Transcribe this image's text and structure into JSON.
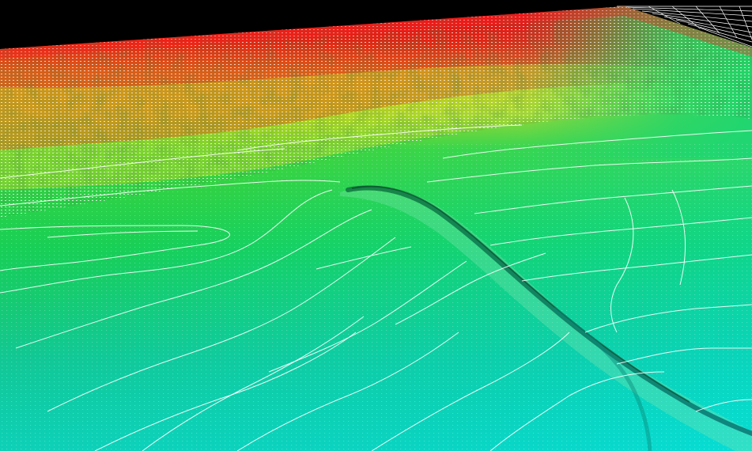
{
  "scene": {
    "kind": "3D bathymetric terrain render with contour lines",
    "background_color": "#000000",
    "contour_color": "#ffffff",
    "grid_color": "#ffffff",
    "elevation_colors": {
      "high": "#e8001a",
      "upper_mid": "#d9d410",
      "mid": "#18d24a",
      "low": "#12c7a0",
      "lowest": "#0fd9d9"
    },
    "has_text": false
  }
}
